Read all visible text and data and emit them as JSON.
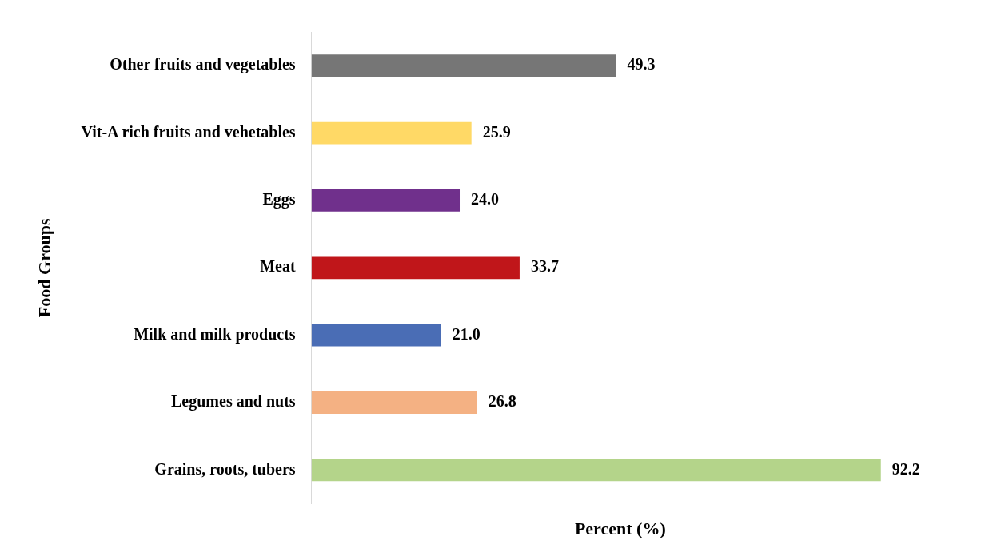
{
  "chart_data": {
    "type": "bar",
    "orientation": "horizontal",
    "xlabel": "Percent (%)",
    "ylabel": "Food Groups",
    "categories": [
      "Other fruits and vegetables",
      "Vit-A rich fruits and vehetables",
      "Eggs",
      "Meat",
      "Milk and milk products",
      "Legumes and nuts",
      "Grains, roots, tubers"
    ],
    "values": [
      49.3,
      25.9,
      24.0,
      33.7,
      21.0,
      26.8,
      92.2
    ],
    "colors": [
      "#767676",
      "#ffd966",
      "#70308c",
      "#c0161a",
      "#4a6db5",
      "#f4b183",
      "#b4d48a"
    ],
    "value_labels": [
      "49.3",
      "25.9",
      "24.0",
      "33.7",
      "21.0",
      "26.8",
      "92.2"
    ],
    "grid": false,
    "legend": false
  }
}
